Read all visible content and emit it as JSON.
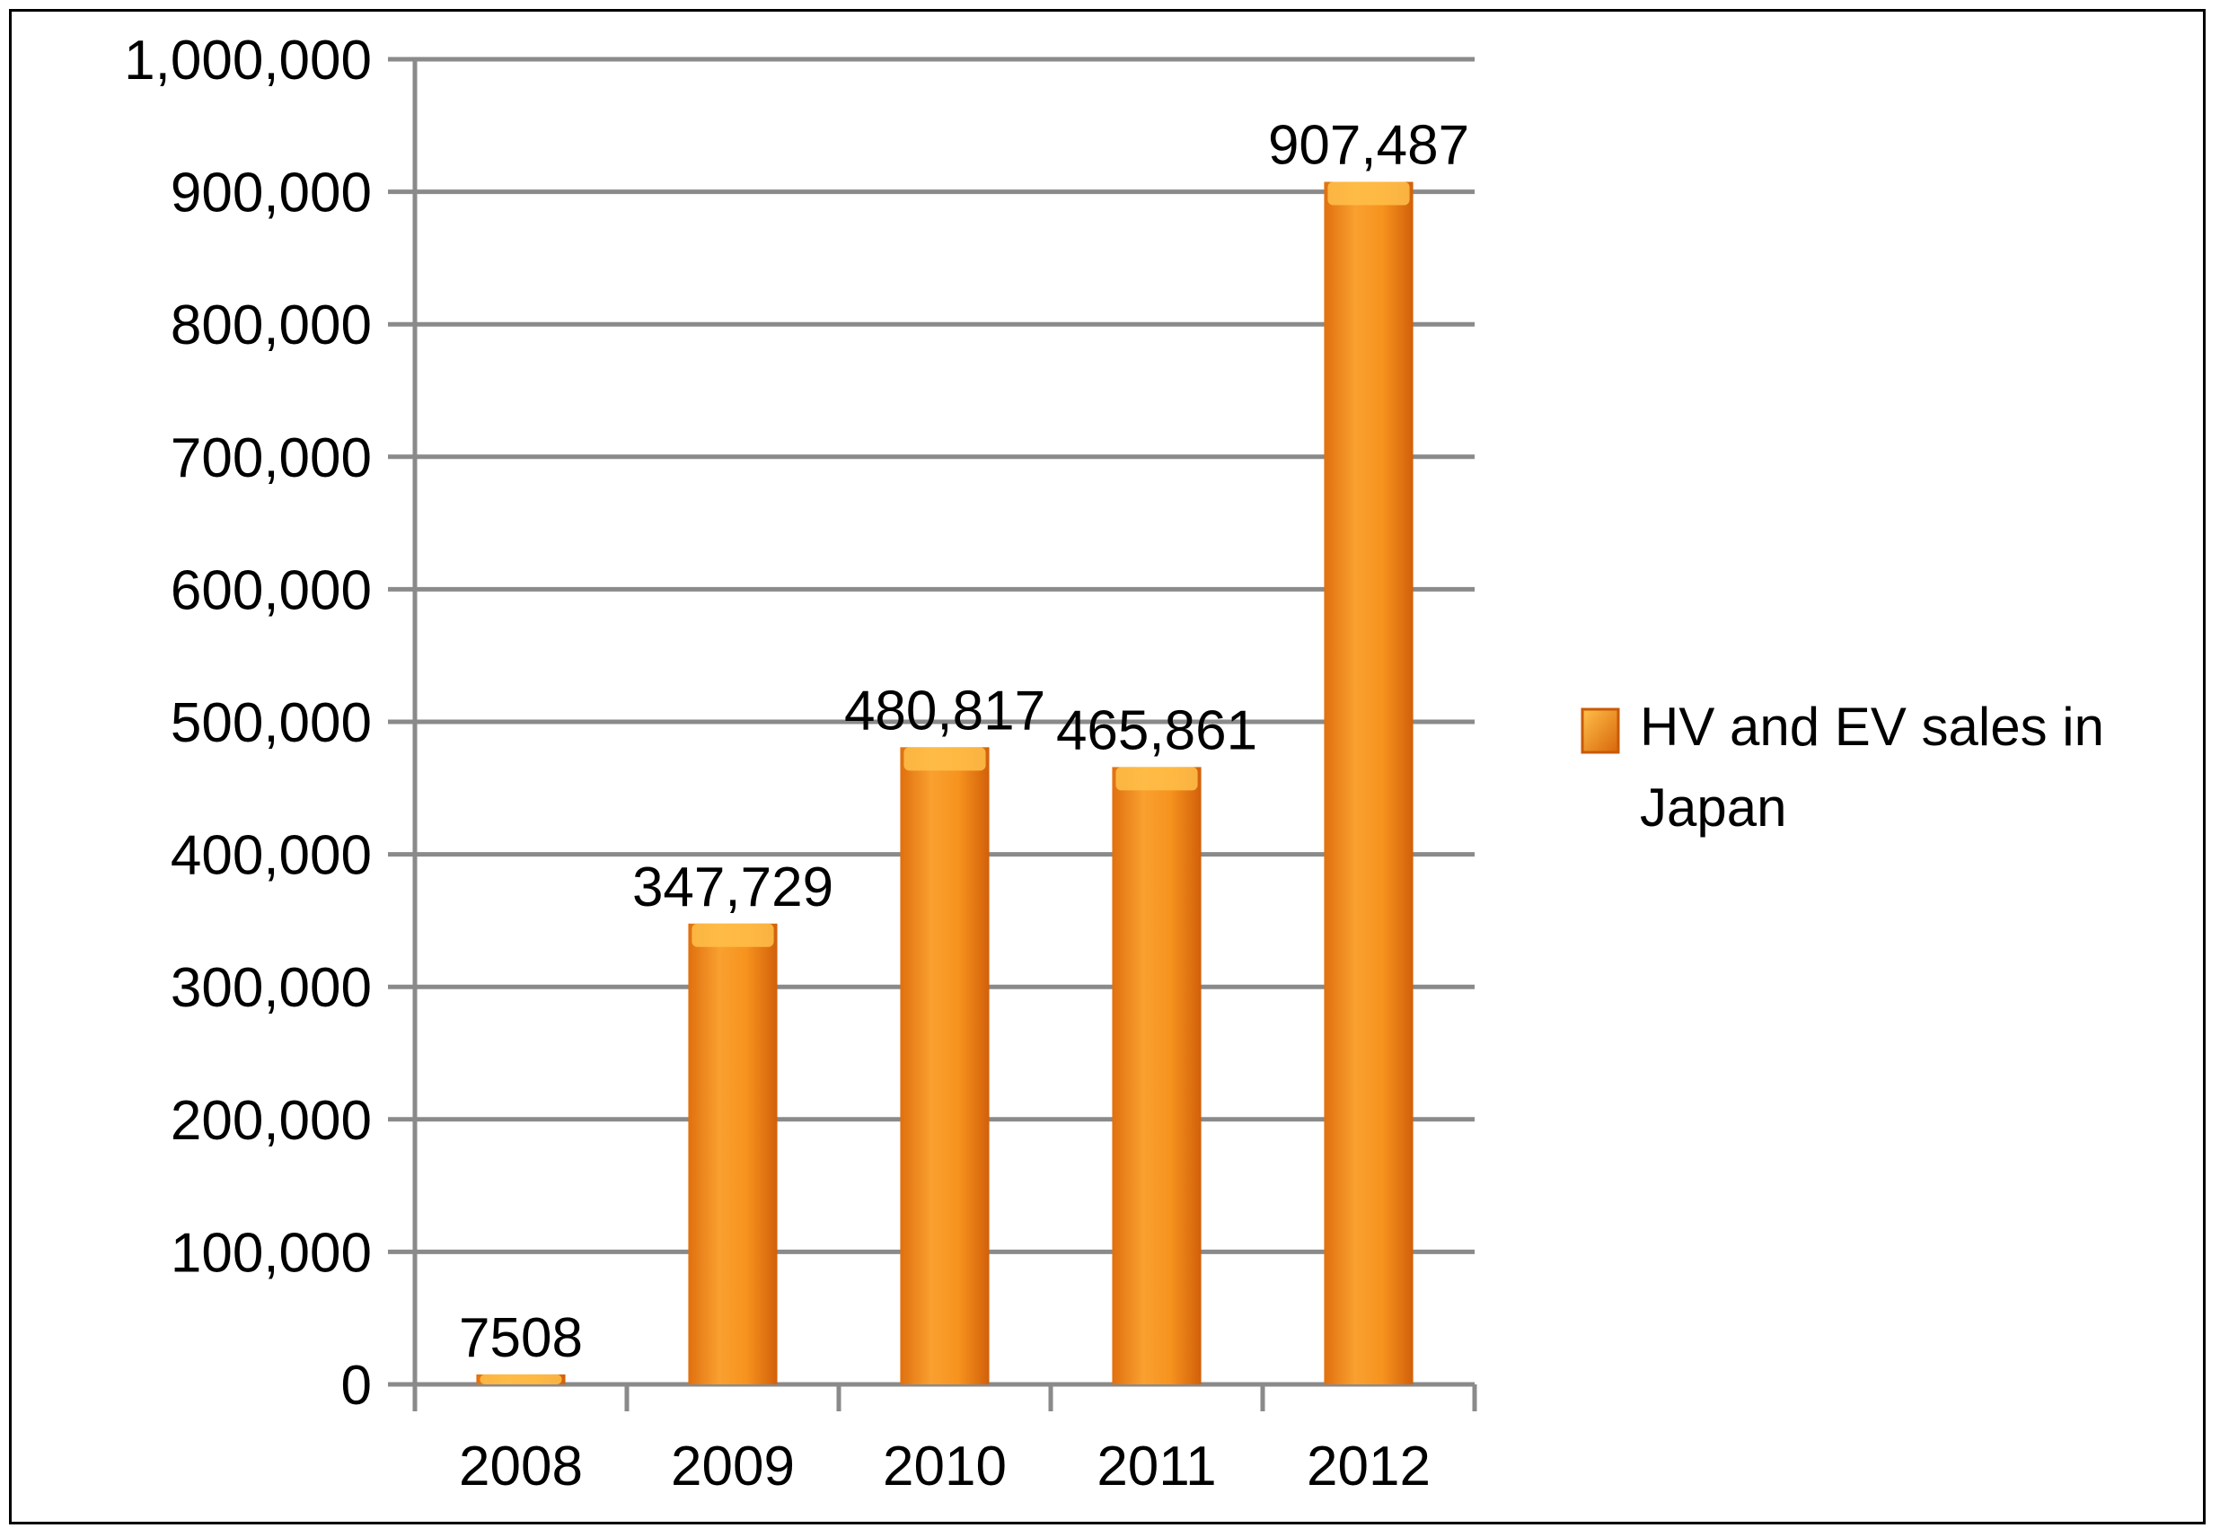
{
  "chart_data": {
    "type": "bar",
    "categories": [
      "2008",
      "2009",
      "2010",
      "2011",
      "2012"
    ],
    "series": [
      {
        "name": "HV and EV sales in Japan",
        "values": [
          7508,
          347729,
          480817,
          465861,
          907487
        ],
        "data_labels": [
          "7508",
          "347,729",
          "480,817",
          "465,861",
          "907,487"
        ]
      }
    ],
    "y_ticks": [
      "0",
      "100,000",
      "200,000",
      "300,000",
      "400,000",
      "500,000",
      "600,000",
      "700,000",
      "800,000",
      "900,000",
      "1,000,000"
    ],
    "ylim": [
      0,
      1000000
    ],
    "grid": true,
    "legend_position": "right",
    "bar_color": "#F7931E",
    "bar_dark": "#D8660A",
    "bar_light": "#FFC04A",
    "legend_lines": [
      "HV and EV sales in",
      "Japan"
    ]
  }
}
